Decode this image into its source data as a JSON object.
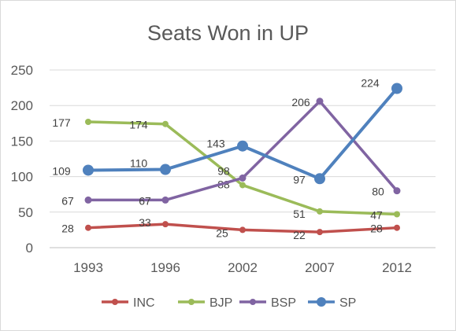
{
  "chart_data": {
    "type": "line",
    "title": "Seats Won in UP",
    "categories": [
      "1993",
      "1996",
      "2002",
      "2007",
      "2012"
    ],
    "ylim": [
      0,
      250
    ],
    "yticks": [
      0,
      50,
      100,
      150,
      200,
      250
    ],
    "grid": true,
    "legend_position": "bottom",
    "series": [
      {
        "name": "INC",
        "values": [
          28,
          33,
          25,
          22,
          28
        ],
        "color": "#c0504d"
      },
      {
        "name": "BJP",
        "values": [
          177,
          174,
          88,
          51,
          47
        ],
        "color": "#9bbb59"
      },
      {
        "name": "BSP",
        "values": [
          67,
          67,
          98,
          206,
          80
        ],
        "color": "#8064a2"
      },
      {
        "name": "SP",
        "values": [
          109,
          110,
          143,
          97,
          224
        ],
        "color": "#4f81bd"
      }
    ]
  }
}
